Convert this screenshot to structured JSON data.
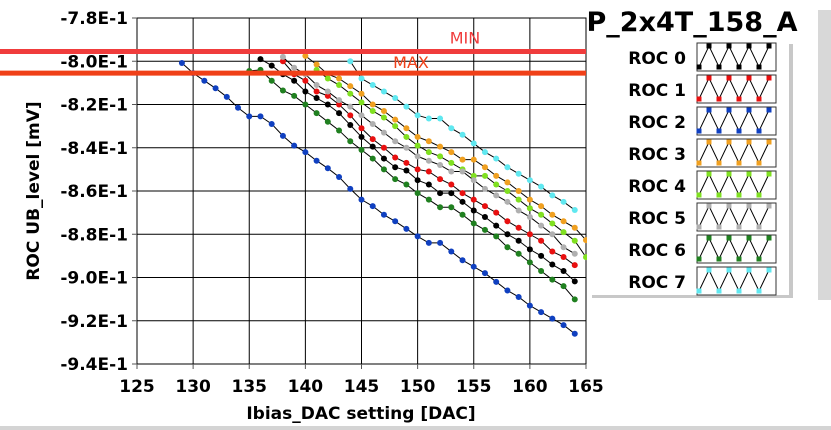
{
  "chart_data": {
    "type": "line",
    "title": "P_2x4T_158_A",
    "xlabel": "Ibias_DAC setting [DAC]",
    "ylabel": "ROC UB_level [mV]",
    "xlim": [
      125,
      165
    ],
    "ylim": [
      -0.94,
      -0.78
    ],
    "x_ticks": [
      125,
      130,
      135,
      140,
      145,
      150,
      155,
      160,
      165
    ],
    "x_tick_labels": [
      "125",
      "130",
      "135",
      "140",
      "145",
      "150",
      "155",
      "160",
      "165"
    ],
    "y_ticks": [
      -0.78,
      -0.8,
      -0.82,
      -0.84,
      -0.86,
      -0.88,
      -0.9,
      -0.92,
      -0.94
    ],
    "y_tick_labels": [
      "-7.8E-1",
      "-8.0E-1",
      "-8.2E-1",
      "-8.4E-1",
      "-8.6E-1",
      "-8.8E-1",
      "-9.0E-1",
      "-9.2E-1",
      "-9.4E-1"
    ],
    "grid": true,
    "legend_position": "right",
    "limits": [
      {
        "name": "MIN",
        "label": "MIN",
        "value": -0.7955,
        "color": "#f03c3c"
      },
      {
        "name": "MAX",
        "label": "MAX",
        "value": -0.8055,
        "color": "#f04018"
      }
    ],
    "series": [
      {
        "name": "ROC 0",
        "color": "#000000",
        "x_start": 136,
        "values": [
          -0.799,
          -0.802,
          -0.806,
          -0.809,
          -0.814,
          -0.817,
          -0.82,
          -0.824,
          -0.8295,
          -0.835,
          -0.8395,
          -0.845,
          -0.849,
          -0.8505,
          -0.855,
          -0.857,
          -0.861,
          -0.861,
          -0.865,
          -0.869,
          -0.872,
          -0.876,
          -0.88,
          -0.883,
          -0.887,
          -0.89,
          -0.894,
          -0.897,
          -0.9018
        ]
      },
      {
        "name": "ROC 1",
        "color": "#e81010",
        "x_start": 138,
        "values": [
          -0.8,
          -0.806,
          -0.809,
          -0.814,
          -0.816,
          -0.82,
          -0.825,
          -0.831,
          -0.836,
          -0.84,
          -0.8445,
          -0.847,
          -0.85,
          -0.851,
          -0.8545,
          -0.857,
          -0.861,
          -0.864,
          -0.867,
          -0.87,
          -0.874,
          -0.877,
          -0.88,
          -0.883,
          -0.888,
          -0.8905,
          -0.8943
        ]
      },
      {
        "name": "ROC 2",
        "color": "#1040c0",
        "x_start": 129,
        "values": [
          -0.8008,
          -0.8055,
          -0.809,
          -0.8125,
          -0.8165,
          -0.8215,
          -0.8255,
          -0.8255,
          -0.829,
          -0.8345,
          -0.839,
          -0.842,
          -0.846,
          -0.8495,
          -0.8535,
          -0.859,
          -0.864,
          -0.867,
          -0.871,
          -0.874,
          -0.8775,
          -0.881,
          -0.884,
          -0.884,
          -0.888,
          -0.892,
          -0.895,
          -0.898,
          -0.902,
          -0.906,
          -0.909,
          -0.913,
          -0.916,
          -0.919,
          -0.922,
          -0.926
        ]
      },
      {
        "name": "ROC 3",
        "color": "#f0a020",
        "x_start": 140,
        "values": [
          -0.7975,
          -0.8015,
          -0.806,
          -0.808,
          -0.8115,
          -0.815,
          -0.82,
          -0.823,
          -0.827,
          -0.831,
          -0.835,
          -0.837,
          -0.8395,
          -0.842,
          -0.8455,
          -0.8455,
          -0.849,
          -0.853,
          -0.856,
          -0.86,
          -0.864,
          -0.867,
          -0.871,
          -0.874,
          -0.877,
          -0.8827
        ]
      },
      {
        "name": "ROC 4",
        "color": "#80e020",
        "x_start": 141,
        "values": [
          -0.804,
          -0.808,
          -0.811,
          -0.815,
          -0.819,
          -0.823,
          -0.826,
          -0.83,
          -0.835,
          -0.839,
          -0.842,
          -0.844,
          -0.847,
          -0.85,
          -0.853,
          -0.853,
          -0.857,
          -0.86,
          -0.864,
          -0.868,
          -0.871,
          -0.875,
          -0.879,
          -0.883,
          -0.8906
        ]
      },
      {
        "name": "ROC 5",
        "color": "#b0b0b0",
        "x_start": 138,
        "values": [
          -0.798,
          -0.803,
          -0.806,
          -0.811,
          -0.814,
          -0.818,
          -0.821,
          -0.825,
          -0.829,
          -0.833,
          -0.837,
          -0.84,
          -0.844,
          -0.846,
          -0.848,
          -0.851,
          -0.851,
          -0.855,
          -0.859,
          -0.862,
          -0.865,
          -0.869,
          -0.872,
          -0.876,
          -0.88,
          -0.886,
          -0.889
        ]
      },
      {
        "name": "ROC 6",
        "color": "#208020",
        "x_start": 135,
        "values": [
          -0.8045,
          -0.804,
          -0.809,
          -0.8135,
          -0.816,
          -0.82,
          -0.824,
          -0.828,
          -0.832,
          -0.837,
          -0.841,
          -0.845,
          -0.85,
          -0.8545,
          -0.857,
          -0.861,
          -0.864,
          -0.8675,
          -0.8675,
          -0.871,
          -0.875,
          -0.878,
          -0.881,
          -0.886,
          -0.889,
          -0.893,
          -0.897,
          -0.901,
          -0.904,
          -0.9101
        ]
      },
      {
        "name": "ROC 7",
        "color": "#60e8f0",
        "x_start": 144,
        "values": [
          -0.8,
          -0.808,
          -0.811,
          -0.814,
          -0.817,
          -0.821,
          -0.825,
          -0.8265,
          -0.8265,
          -0.831,
          -0.834,
          -0.838,
          -0.842,
          -0.845,
          -0.849,
          -0.852,
          -0.855,
          -0.858,
          -0.862,
          -0.865,
          -0.8688
        ]
      }
    ]
  }
}
